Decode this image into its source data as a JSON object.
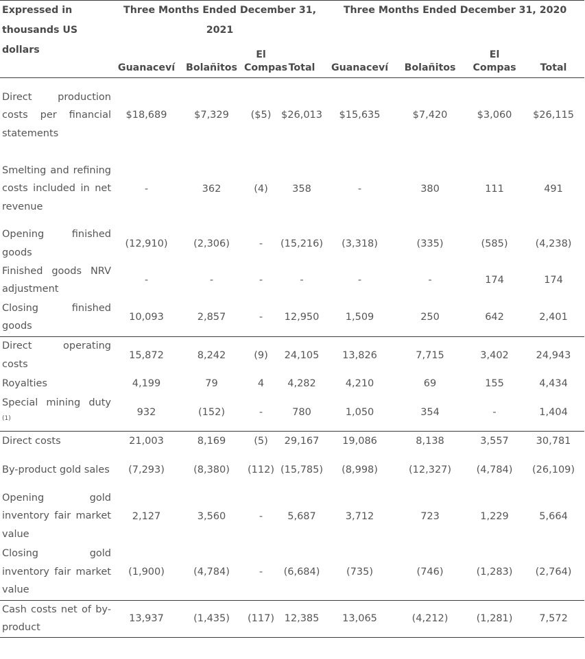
{
  "table": {
    "header_label": "Expressed in thousands US dollars",
    "period_2021": "Three Months Ended December 31, 2021",
    "period_2020": "Three Months Ended December 31, 2020",
    "columns": [
      "Guanaceví",
      "Bolañitos",
      "El Compas",
      "Total",
      "Guanaceví",
      "Bolañitos",
      "El Compas",
      "Total"
    ],
    "footnote_marker": "(1)",
    "rows": [
      {
        "label": "Direct production costs per financial statements",
        "values": [
          "$18,689",
          "$7,329",
          "($5)",
          "$26,013",
          "$15,635",
          "$7,420",
          "$3,060",
          "$26,115"
        ]
      },
      {
        "label": "Smelting and refining costs included in net revenue",
        "values": [
          "-",
          "362",
          "(4)",
          "358",
          "-",
          "380",
          "111",
          "491"
        ]
      },
      {
        "label": "Opening finished goods",
        "values": [
          "(12,910)",
          "(2,306)",
          "-",
          "(15,216)",
          "(3,318)",
          "(335)",
          "(585)",
          "(4,238)"
        ]
      },
      {
        "label": "Finished goods NRV adjustment",
        "values": [
          "-",
          "-",
          "-",
          "-",
          "-",
          "-",
          "174",
          "174"
        ]
      },
      {
        "label": "Closing finished goods",
        "values": [
          "10,093",
          "2,857",
          "-",
          "12,950",
          "1,509",
          "250",
          "642",
          "2,401"
        ]
      },
      {
        "label": "Direct operating costs",
        "values": [
          "15,872",
          "8,242",
          "(9)",
          "24,105",
          "13,826",
          "7,715",
          "3,402",
          "24,943"
        ]
      },
      {
        "label": "Royalties",
        "values": [
          "4,199",
          "79",
          "4",
          "4,282",
          "4,210",
          "69",
          "155",
          "4,434"
        ]
      },
      {
        "label": "Special mining duty",
        "values": [
          "932",
          "(152)",
          "-",
          "780",
          "1,050",
          "354",
          "-",
          "1,404"
        ]
      },
      {
        "label": "Direct costs",
        "values": [
          "21,003",
          "8,169",
          "(5)",
          "29,167",
          "19,086",
          "8,138",
          "3,557",
          "30,781"
        ]
      },
      {
        "label": "By-product gold sales",
        "values": [
          "(7,293)",
          "(8,380)",
          "(112)",
          "(15,785)",
          "(8,998)",
          "(12,327)",
          "(4,784)",
          "(26,109)"
        ]
      },
      {
        "label": "Opening gold inventory fair market value",
        "values": [
          "2,127",
          "3,560",
          "-",
          "5,687",
          "3,712",
          "723",
          "1,229",
          "5,664"
        ]
      },
      {
        "label": "Closing gold inventory fair market value",
        "values": [
          "(1,900)",
          "(4,784)",
          "-",
          "(6,684)",
          "(735)",
          "(746)",
          "(1,283)",
          "(2,764)"
        ]
      },
      {
        "label": "Cash costs net of by-product",
        "values": [
          "13,937",
          "(1,435)",
          "(117)",
          "12,385",
          "13,065",
          "(4,212)",
          "(1,281)",
          "7,572"
        ]
      }
    ]
  }
}
